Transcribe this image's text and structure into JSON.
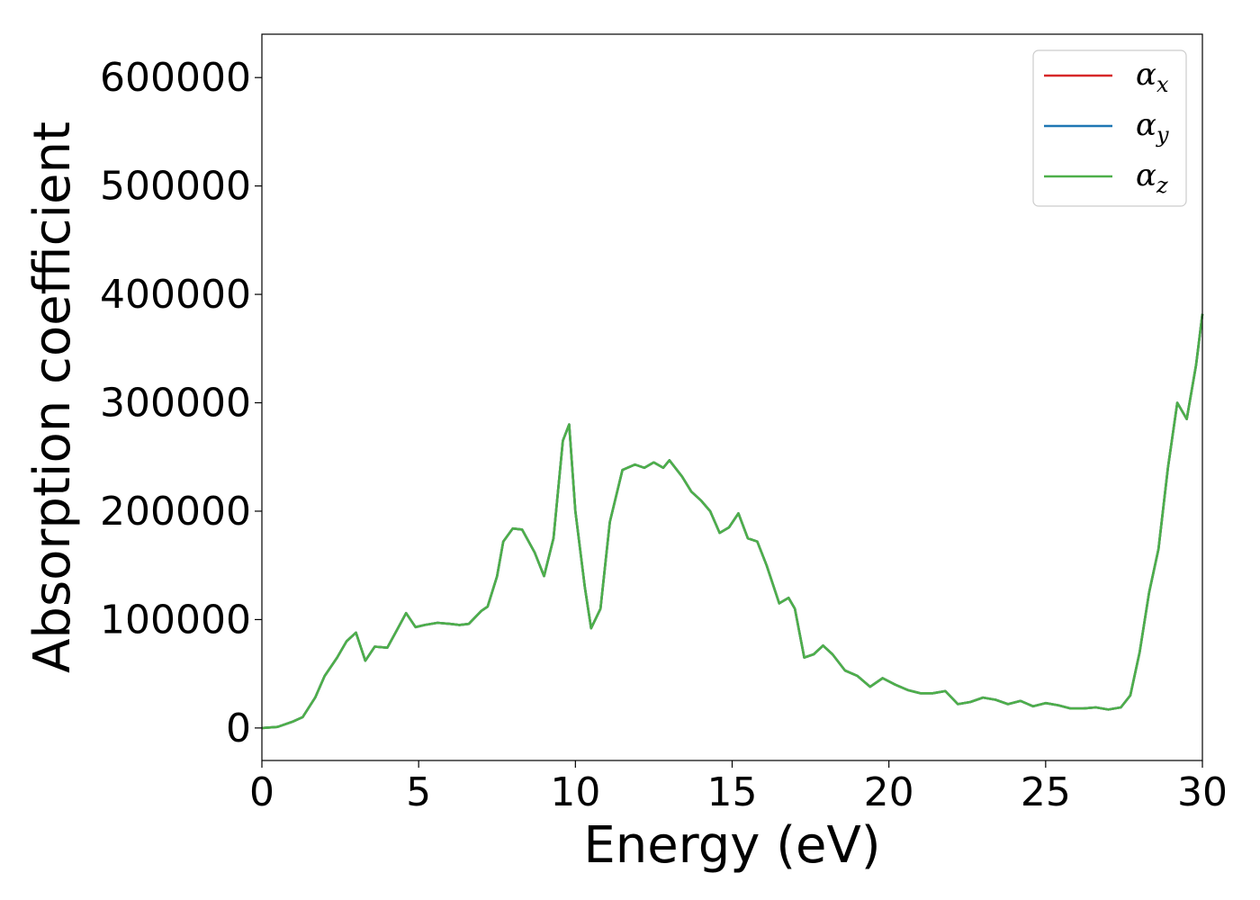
{
  "chart_data": {
    "type": "line",
    "xlabel": "Energy (eV)",
    "ylabel": "Absorption coefficient",
    "xlim": [
      0,
      30
    ],
    "ylim": [
      -30000,
      640000
    ],
    "xticks": [
      "0",
      "5",
      "10",
      "15",
      "20",
      "25",
      "30"
    ],
    "yticks": [
      "0",
      "100000",
      "200000",
      "300000",
      "400000",
      "500000",
      "600000"
    ],
    "grid": false,
    "legend_placement": "top-right",
    "legend": [
      {
        "symbol": "α",
        "sub": "x",
        "color": "#d62728"
      },
      {
        "symbol": "α",
        "sub": "y",
        "color": "#1f77b4"
      },
      {
        "symbol": "α",
        "sub": "z",
        "color": "#4daf4a"
      }
    ],
    "x": [
      0,
      0.5,
      1.0,
      1.3,
      1.7,
      2.0,
      2.4,
      2.7,
      3.0,
      3.3,
      3.6,
      4.0,
      4.3,
      4.6,
      4.9,
      5.2,
      5.6,
      6.0,
      6.3,
      6.6,
      7.0,
      7.2,
      7.5,
      7.7,
      8.0,
      8.3,
      8.7,
      9.0,
      9.3,
      9.6,
      9.8,
      10.0,
      10.3,
      10.5,
      10.8,
      11.1,
      11.5,
      11.9,
      12.2,
      12.5,
      12.8,
      13.0,
      13.4,
      13.7,
      14.0,
      14.3,
      14.6,
      14.9,
      15.2,
      15.5,
      15.8,
      16.1,
      16.5,
      16.8,
      17.0,
      17.3,
      17.6,
      17.9,
      18.2,
      18.6,
      19.0,
      19.4,
      19.8,
      20.2,
      20.6,
      21.0,
      21.4,
      21.8,
      22.2,
      22.6,
      23.0,
      23.4,
      23.8,
      24.2,
      24.6,
      25.0,
      25.4,
      25.8,
      26.2,
      26.6,
      27.0,
      27.4,
      27.7,
      28.0,
      28.3,
      28.6,
      28.9,
      29.2,
      29.5,
      29.8,
      30.0
    ],
    "series": [
      {
        "sub": "x",
        "values": [
          0,
          1000,
          6000,
          10000,
          28000,
          48000,
          65000,
          80000,
          88000,
          62000,
          75000,
          74000,
          90000,
          106000,
          93000,
          95000,
          97000,
          96000,
          95000,
          96000,
          108000,
          112000,
          140000,
          172000,
          184000,
          183000,
          162000,
          140000,
          175000,
          265000,
          280000,
          200000,
          130000,
          92000,
          110000,
          190000,
          238000,
          243000,
          240000,
          245000,
          240000,
          247000,
          232000,
          218000,
          210000,
          200000,
          180000,
          185000,
          198000,
          175000,
          172000,
          150000,
          115000,
          120000,
          110000,
          65000,
          68000,
          76000,
          68000,
          53000,
          48000,
          38000,
          46000,
          40000,
          35000,
          32000,
          32000,
          34000,
          22000,
          24000,
          28000,
          26000,
          22000,
          25000,
          20000,
          23000,
          21000,
          18000,
          18000,
          19000,
          17000,
          19000,
          30000,
          70000,
          125000,
          165000,
          240000,
          300000,
          285000,
          335000,
          382000
        ]
      },
      {
        "sub": "y",
        "values": [
          0,
          1000,
          6000,
          10000,
          28000,
          48000,
          65000,
          80000,
          88000,
          62000,
          75000,
          74000,
          90000,
          106000,
          93000,
          95000,
          97000,
          96000,
          95000,
          96000,
          108000,
          112000,
          140000,
          172000,
          184000,
          183000,
          162000,
          140000,
          175000,
          265000,
          280000,
          200000,
          130000,
          92000,
          110000,
          190000,
          238000,
          243000,
          240000,
          245000,
          240000,
          247000,
          232000,
          218000,
          210000,
          200000,
          180000,
          185000,
          198000,
          175000,
          172000,
          150000,
          115000,
          120000,
          110000,
          65000,
          68000,
          76000,
          68000,
          53000,
          48000,
          38000,
          46000,
          40000,
          35000,
          32000,
          32000,
          34000,
          22000,
          24000,
          28000,
          26000,
          22000,
          25000,
          20000,
          23000,
          21000,
          18000,
          18000,
          19000,
          17000,
          19000,
          30000,
          70000,
          125000,
          165000,
          240000,
          300000,
          285000,
          335000,
          382000
        ]
      },
      {
        "sub": "z",
        "values": [
          0,
          1000,
          6000,
          10000,
          28000,
          48000,
          65000,
          80000,
          88000,
          62000,
          75000,
          74000,
          90000,
          106000,
          93000,
          95000,
          97000,
          96000,
          95000,
          96000,
          108000,
          112000,
          140000,
          172000,
          184000,
          183000,
          162000,
          140000,
          175000,
          265000,
          280000,
          200000,
          130000,
          92000,
          110000,
          190000,
          238000,
          243000,
          240000,
          245000,
          240000,
          247000,
          232000,
          218000,
          210000,
          200000,
          180000,
          185000,
          198000,
          175000,
          172000,
          150000,
          115000,
          120000,
          110000,
          65000,
          68000,
          76000,
          68000,
          53000,
          48000,
          38000,
          46000,
          40000,
          35000,
          32000,
          32000,
          34000,
          22000,
          24000,
          28000,
          26000,
          22000,
          25000,
          20000,
          23000,
          21000,
          18000,
          18000,
          19000,
          17000,
          19000,
          30000,
          70000,
          125000,
          165000,
          240000,
          300000,
          285000,
          335000,
          382000
        ]
      }
    ]
  }
}
